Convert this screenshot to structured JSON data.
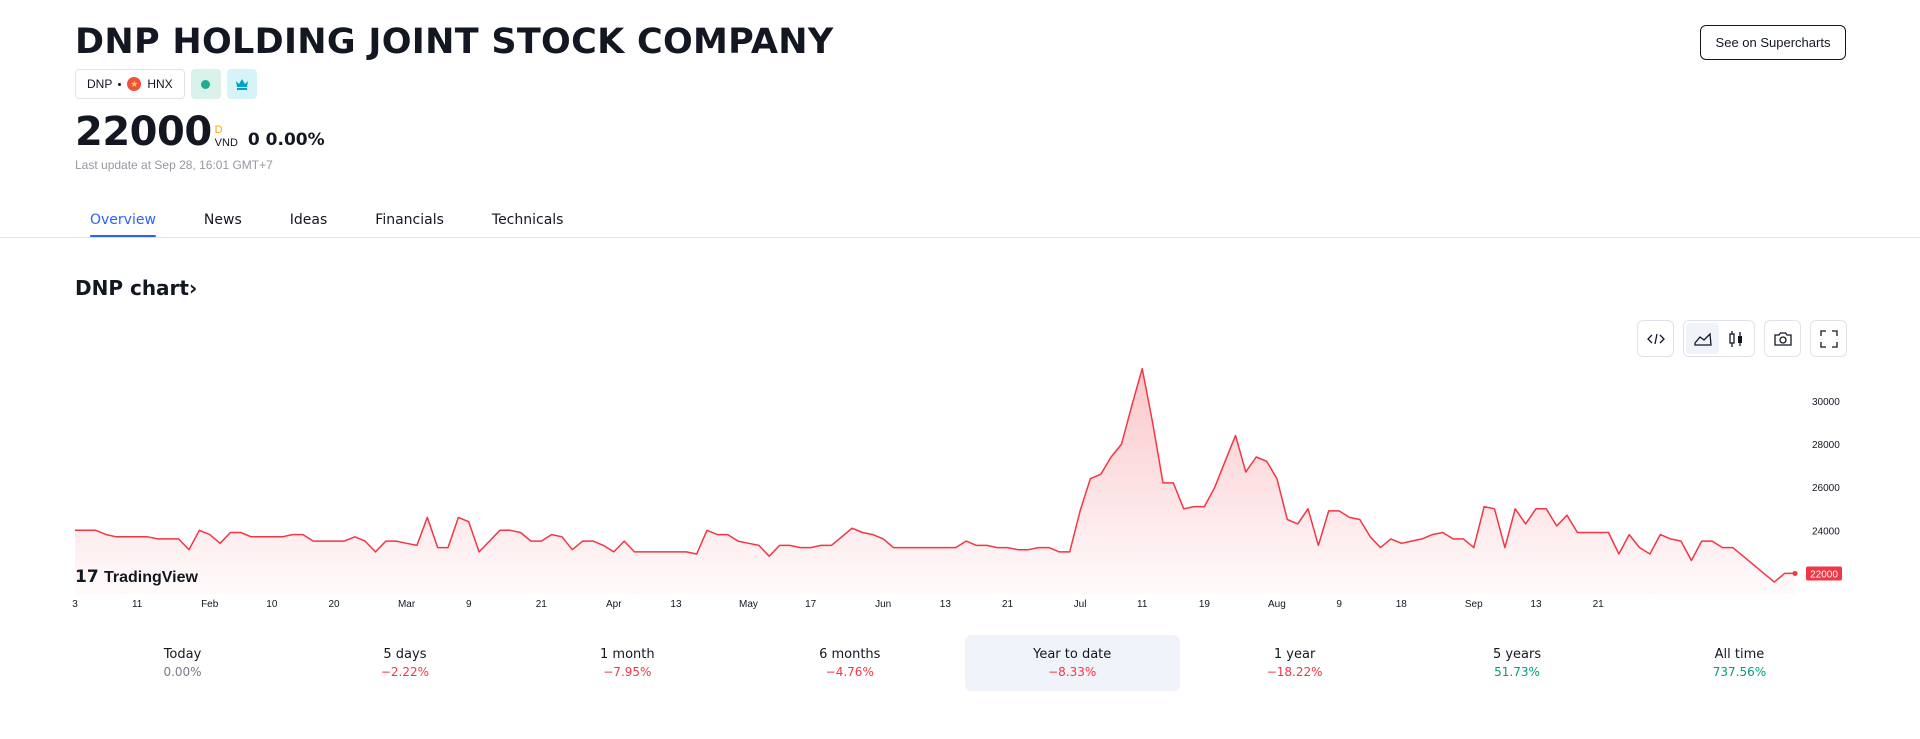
{
  "header": {
    "title": "DNP HOLDING JOINT STOCK COMPANY",
    "supercharts_label": "See on Supercharts",
    "symbol": "DNP",
    "exchange": "HNX"
  },
  "quote": {
    "price": "22000",
    "currency_badge": "D",
    "currency": "VND",
    "change": "0 0.00%",
    "last_update": "Last update at Sep 28, 16:01 GMT+7"
  },
  "tabs": [
    {
      "label": "Overview",
      "active": true
    },
    {
      "label": "News"
    },
    {
      "label": "Ideas"
    },
    {
      "label": "Financials"
    },
    {
      "label": "Technicals"
    }
  ],
  "section": {
    "title": "DNP chart"
  },
  "colors": {
    "down": "#f23645",
    "up": "#089981",
    "accent": "#2962ff"
  },
  "chart_data": {
    "type": "area",
    "series_color": "#f23645",
    "watermark": "TradingView",
    "y_ticks": [
      24000,
      26000,
      28000,
      30000
    ],
    "ylim": [
      21000,
      31900
    ],
    "last_value": 22000,
    "x_tick_labels": [
      {
        "label": "3",
        "i": 0
      },
      {
        "label": "11",
        "i": 6
      },
      {
        "label": "Feb",
        "i": 13
      },
      {
        "label": "10",
        "i": 19
      },
      {
        "label": "20",
        "i": 25
      },
      {
        "label": "Mar",
        "i": 32
      },
      {
        "label": "9",
        "i": 38
      },
      {
        "label": "21",
        "i": 45
      },
      {
        "label": "Apr",
        "i": 52
      },
      {
        "label": "13",
        "i": 58
      },
      {
        "label": "May",
        "i": 65
      },
      {
        "label": "17",
        "i": 71
      },
      {
        "label": "Jun",
        "i": 78
      },
      {
        "label": "13",
        "i": 84
      },
      {
        "label": "21",
        "i": 90
      },
      {
        "label": "Jul",
        "i": 97
      },
      {
        "label": "11",
        "i": 103
      },
      {
        "label": "19",
        "i": 109
      },
      {
        "label": "Aug",
        "i": 116
      },
      {
        "label": "9",
        "i": 122
      },
      {
        "label": "18",
        "i": 128
      },
      {
        "label": "Sep",
        "i": 135
      },
      {
        "label": "13",
        "i": 141
      },
      {
        "label": "21",
        "i": 147
      }
    ],
    "values": [
      24000,
      24000,
      24000,
      23800,
      23700,
      23700,
      23700,
      23700,
      23600,
      23600,
      23600,
      23100,
      24000,
      23800,
      23400,
      23900,
      23900,
      23700,
      23700,
      23700,
      23700,
      23800,
      23800,
      23500,
      23500,
      23500,
      23500,
      23700,
      23500,
      23000,
      23500,
      23500,
      23400,
      23300,
      24600,
      23200,
      23200,
      24600,
      24400,
      23000,
      23500,
      24000,
      24000,
      23900,
      23500,
      23500,
      23800,
      23700,
      23100,
      23500,
      23500,
      23300,
      23000,
      23500,
      23000,
      23000,
      23000,
      23000,
      23000,
      23000,
      22900,
      24000,
      23800,
      23800,
      23500,
      23400,
      23300,
      22800,
      23300,
      23300,
      23200,
      23200,
      23300,
      23300,
      23700,
      24100,
      23900,
      23800,
      23600,
      23200,
      23200,
      23200,
      23200,
      23200,
      23200,
      23200,
      23500,
      23300,
      23300,
      23200,
      23200,
      23100,
      23100,
      23200,
      23200,
      23000,
      23000,
      24900,
      26400,
      26600,
      27400,
      28000,
      29800,
      31500,
      29000,
      26200,
      26200,
      25000,
      25100,
      25100,
      26000,
      27200,
      28400,
      26700,
      27400,
      27200,
      26400,
      24500,
      24300,
      25000,
      23300,
      24900,
      24900,
      24600,
      24500,
      23700,
      23200,
      23600,
      23400,
      23500,
      23600,
      23800,
      23900,
      23600,
      23600,
      23200,
      25100,
      25000,
      23200,
      25000,
      24300,
      25000,
      25000,
      24200,
      24700,
      23900,
      23900,
      23900,
      23900,
      22900,
      23800,
      23200,
      22900,
      23800,
      23600,
      23500,
      22600,
      23500,
      23500,
      23200,
      23200,
      22800,
      22400,
      22000,
      21600,
      22000,
      22000
    ]
  },
  "periods": [
    {
      "label": "Today",
      "value": "0.00%",
      "tone": "neutral"
    },
    {
      "label": "5 days",
      "value": "−2.22%",
      "tone": "down"
    },
    {
      "label": "1 month",
      "value": "−7.95%",
      "tone": "down"
    },
    {
      "label": "6 months",
      "value": "−4.76%",
      "tone": "down"
    },
    {
      "label": "Year to date",
      "value": "−8.33%",
      "tone": "down",
      "active": true
    },
    {
      "label": "1 year",
      "value": "−18.22%",
      "tone": "down"
    },
    {
      "label": "5 years",
      "value": "51.73%",
      "tone": "up"
    },
    {
      "label": "All time",
      "value": "737.56%",
      "tone": "up"
    }
  ]
}
